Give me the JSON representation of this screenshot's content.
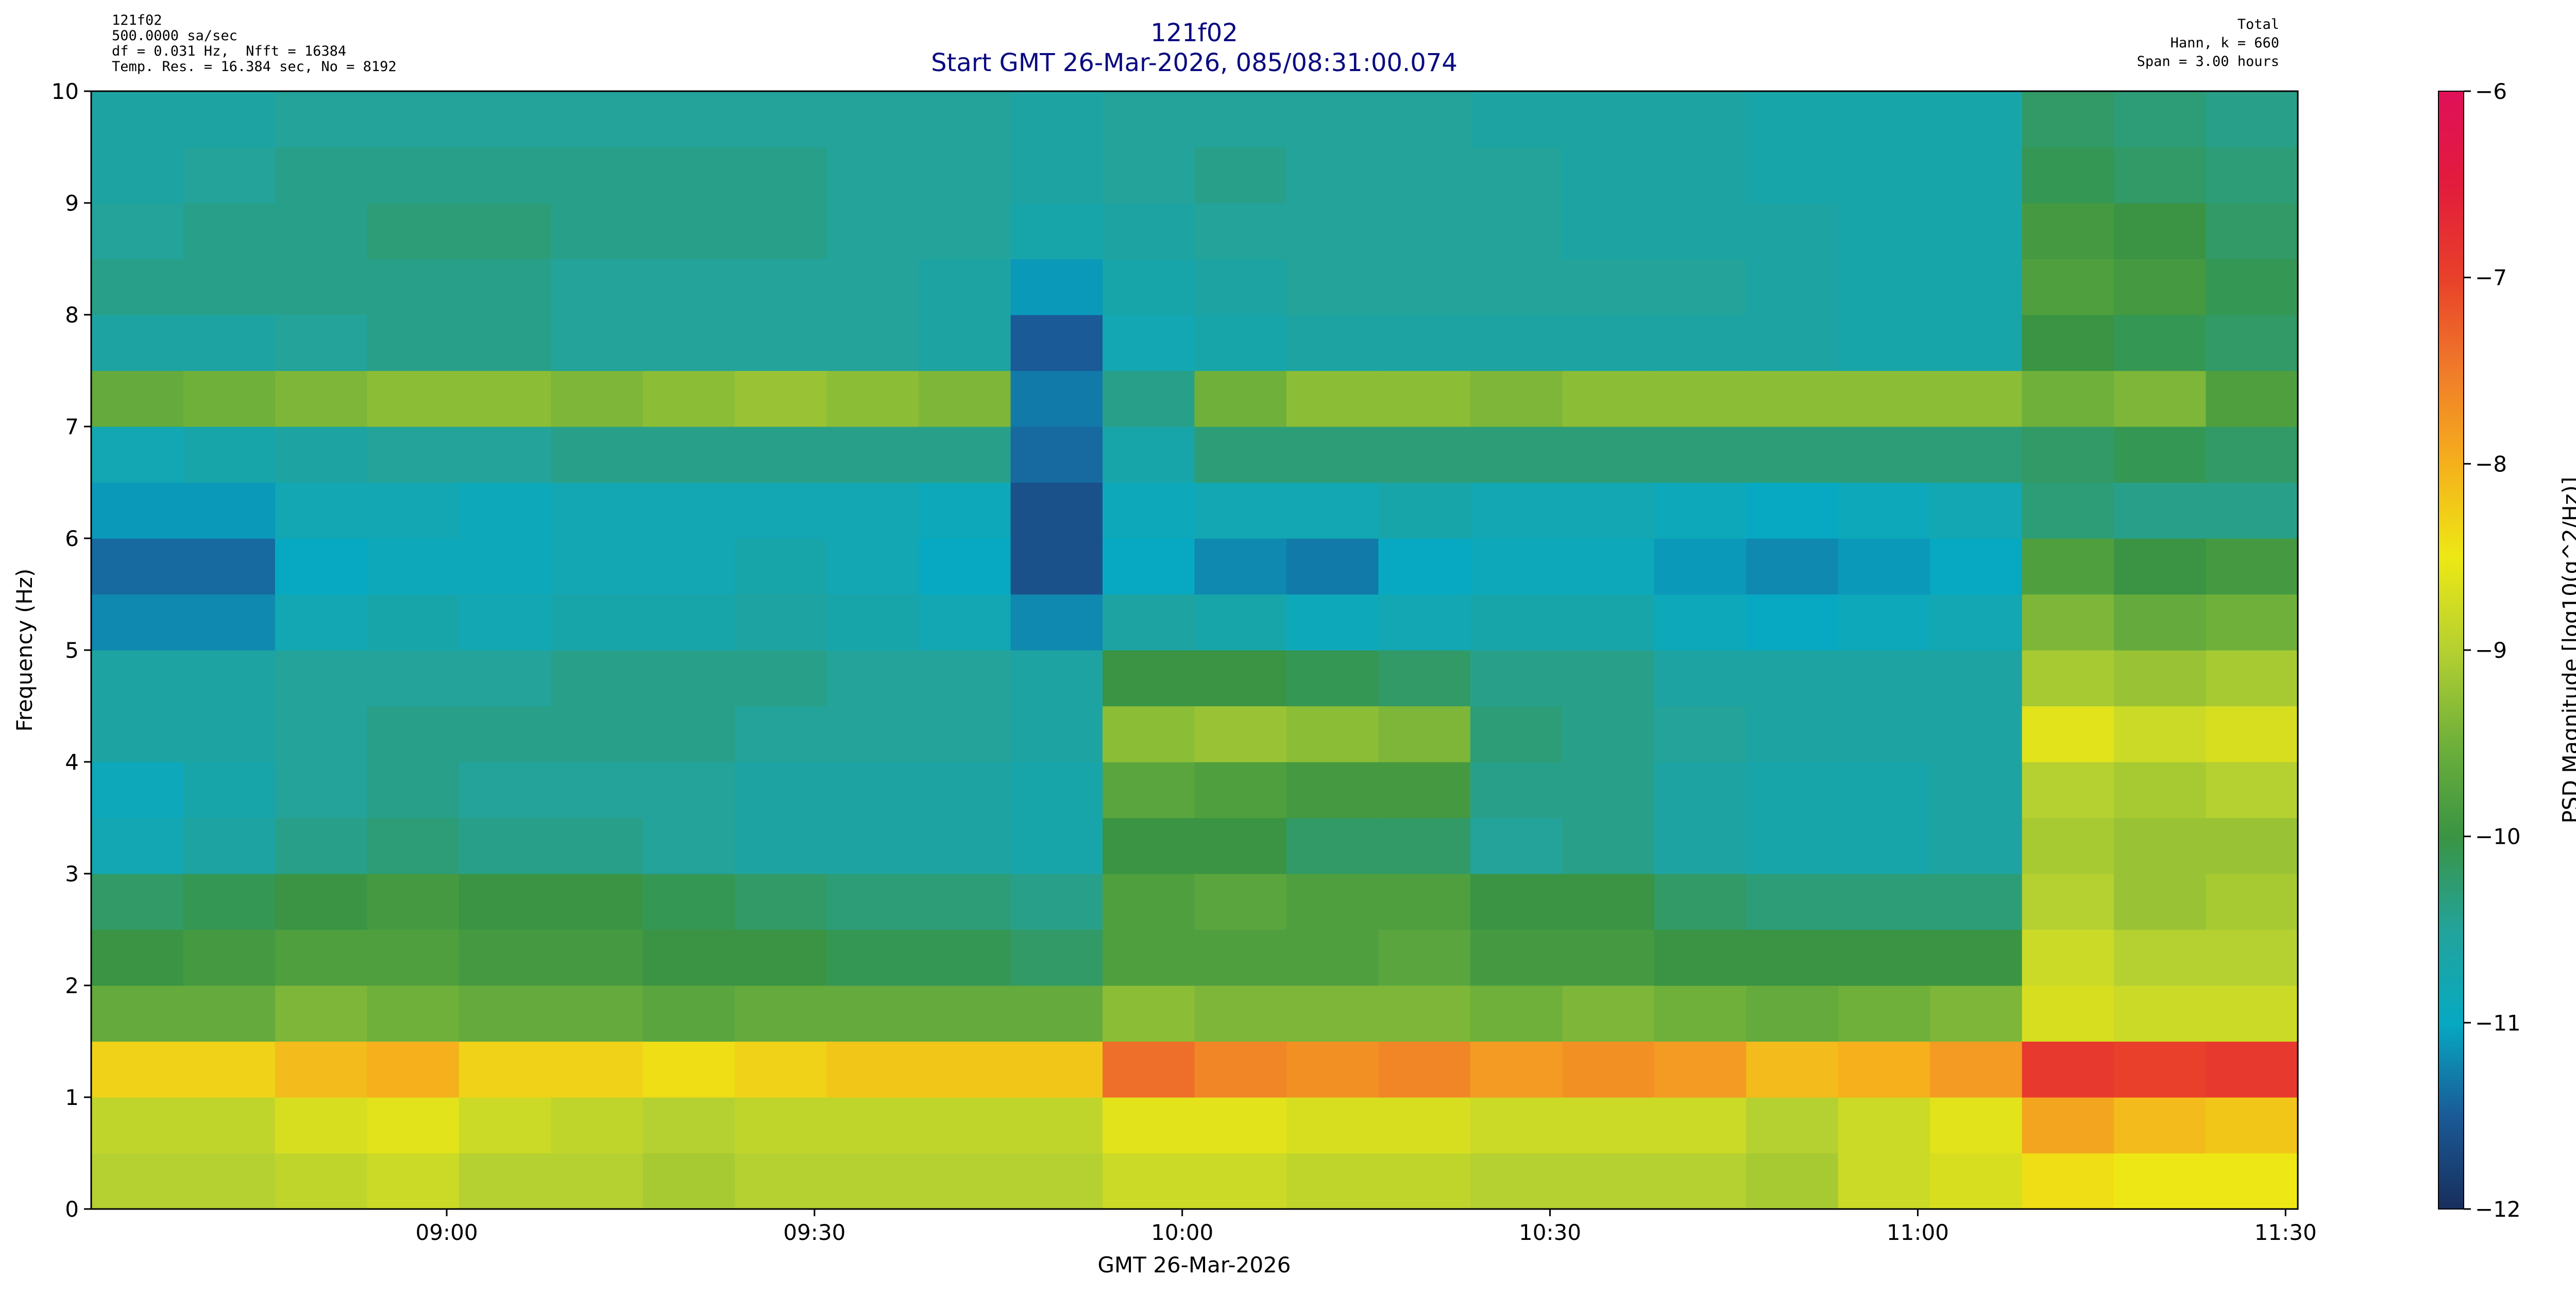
{
  "chart_data": {
    "type": "heatmap",
    "title": "121f02",
    "subtitle": "Start GMT 26-Mar-2026, 085/08:31:00.074",
    "notes_left": [
      "121f02",
      "500.0000 sa/sec",
      "df = 0.031 Hz,  Nfft = 16384",
      "Temp. Res. = 16.384 sec, No = 8192"
    ],
    "notes_right": [
      "Total",
      "Hann, k = 660",
      "Span = 3.00 hours"
    ],
    "xlabel": "GMT 26-Mar-2026",
    "ylabel": "Frequency (Hz)",
    "zlabel": "PSD Magnitude [log10(g^2/Hz)]",
    "xlim": [
      511,
      691
    ],
    "xticks": [
      {
        "value": 540,
        "label": "09:00"
      },
      {
        "value": 570,
        "label": "09:30"
      },
      {
        "value": 600,
        "label": "10:00"
      },
      {
        "value": 630,
        "label": "10:30"
      },
      {
        "value": 660,
        "label": "11:00"
      },
      {
        "value": 690,
        "label": "11:30"
      }
    ],
    "ylim": [
      0,
      10
    ],
    "yticks": [
      0,
      1,
      2,
      3,
      4,
      5,
      6,
      7,
      8,
      9,
      10
    ],
    "zlim": [
      -12,
      -6
    ],
    "zticks": [
      {
        "value": -12,
        "label": "−12"
      },
      {
        "value": -11,
        "label": "−11"
      },
      {
        "value": -10,
        "label": "−10"
      },
      {
        "value": -9,
        "label": "−9"
      },
      {
        "value": -8,
        "label": "−8"
      },
      {
        "value": -7,
        "label": "−7"
      },
      {
        "value": -6,
        "label": "−6"
      }
    ],
    "colors": [
      "#182e5c",
      "#1a5a96",
      "#07a9c2",
      "#23a39a",
      "#3a9443",
      "#6fb03a",
      "#b5d031",
      "#ede815",
      "#f5b01c",
      "#f07b2a",
      "#e8402a",
      "#e21c3c",
      "#e0105a"
    ],
    "bins": [
      511,
      518.5,
      526,
      533.5,
      541,
      548.5,
      556,
      563.5,
      571,
      578.5,
      586,
      593.5,
      601,
      608.5,
      616,
      623.5,
      631,
      638.5,
      646,
      653.5,
      661,
      668.5,
      676,
      683.5,
      691
    ],
    "y_bins": [
      0,
      0.5,
      1,
      1.5,
      2,
      2.5,
      3,
      3.5,
      4,
      4.5,
      5,
      5.5,
      6,
      6.5,
      7,
      7.5,
      8,
      8.5,
      9,
      9.5,
      10
    ],
    "z": [
      [
        -9.0,
        -9.0,
        -8.9,
        -8.8,
        -9.0,
        -9.0,
        -9.1,
        -9.0,
        -9.0,
        -9.0,
        -9.0,
        -8.8,
        -8.8,
        -8.9,
        -8.9,
        -9.0,
        -9.0,
        -9.0,
        -9.1,
        -8.8,
        -8.7,
        -8.4,
        -8.5,
        -8.5
      ],
      [
        -8.9,
        -8.9,
        -8.7,
        -8.6,
        -8.8,
        -8.9,
        -9.0,
        -8.9,
        -8.9,
        -8.9,
        -8.9,
        -8.6,
        -8.6,
        -8.7,
        -8.7,
        -8.8,
        -8.8,
        -8.8,
        -9.0,
        -8.8,
        -8.6,
        -7.9,
        -8.1,
        -8.2
      ],
      [
        -8.3,
        -8.3,
        -8.1,
        -8.0,
        -8.3,
        -8.3,
        -8.4,
        -8.3,
        -8.2,
        -8.2,
        -8.2,
        -7.4,
        -7.6,
        -7.7,
        -7.6,
        -7.8,
        -7.7,
        -7.8,
        -8.1,
        -8.0,
        -7.8,
        -6.9,
        -7.0,
        -6.9
      ],
      [
        -9.6,
        -9.6,
        -9.4,
        -9.5,
        -9.6,
        -9.6,
        -9.7,
        -9.6,
        -9.6,
        -9.6,
        -9.6,
        -9.3,
        -9.4,
        -9.4,
        -9.4,
        -9.5,
        -9.4,
        -9.5,
        -9.6,
        -9.5,
        -9.4,
        -8.7,
        -8.8,
        -8.8
      ],
      [
        -10.0,
        -9.9,
        -9.8,
        -9.8,
        -9.9,
        -9.9,
        -10.0,
        -10.0,
        -10.1,
        -10.1,
        -10.2,
        -9.8,
        -9.8,
        -9.8,
        -9.7,
        -9.9,
        -9.9,
        -10.0,
        -10.0,
        -10.0,
        -10.0,
        -8.8,
        -9.0,
        -9.0
      ],
      [
        -10.2,
        -10.1,
        -10.0,
        -9.9,
        -10.0,
        -10.0,
        -10.1,
        -10.2,
        -10.3,
        -10.3,
        -10.4,
        -9.8,
        -9.7,
        -9.8,
        -9.8,
        -10.0,
        -10.0,
        -10.2,
        -10.3,
        -10.3,
        -10.3,
        -9.0,
        -9.2,
        -9.1
      ],
      [
        -10.8,
        -10.6,
        -10.4,
        -10.3,
        -10.4,
        -10.4,
        -10.5,
        -10.6,
        -10.6,
        -10.6,
        -10.7,
        -10.0,
        -10.0,
        -10.2,
        -10.2,
        -10.5,
        -10.4,
        -10.6,
        -10.7,
        -10.7,
        -10.6,
        -9.1,
        -9.2,
        -9.2
      ],
      [
        -10.9,
        -10.7,
        -10.5,
        -10.4,
        -10.5,
        -10.5,
        -10.5,
        -10.6,
        -10.6,
        -10.6,
        -10.7,
        -9.7,
        -9.8,
        -9.9,
        -9.9,
        -10.4,
        -10.4,
        -10.6,
        -10.7,
        -10.7,
        -10.6,
        -9.0,
        -9.1,
        -9.0
      ],
      [
        -10.6,
        -10.6,
        -10.5,
        -10.4,
        -10.4,
        -10.4,
        -10.4,
        -10.5,
        -10.5,
        -10.5,
        -10.6,
        -9.3,
        -9.2,
        -9.3,
        -9.4,
        -10.3,
        -10.4,
        -10.5,
        -10.6,
        -10.6,
        -10.6,
        -8.6,
        -8.8,
        -8.7
      ],
      [
        -10.6,
        -10.6,
        -10.5,
        -10.5,
        -10.5,
        -10.4,
        -10.4,
        -10.4,
        -10.5,
        -10.5,
        -10.6,
        -10.0,
        -10.0,
        -10.1,
        -10.2,
        -10.4,
        -10.4,
        -10.6,
        -10.6,
        -10.6,
        -10.6,
        -9.1,
        -9.2,
        -9.1
      ],
      [
        -11.2,
        -11.2,
        -10.8,
        -10.7,
        -10.8,
        -10.7,
        -10.7,
        -10.6,
        -10.7,
        -10.8,
        -11.2,
        -10.6,
        -10.7,
        -10.9,
        -10.8,
        -10.7,
        -10.7,
        -10.9,
        -11.0,
        -10.9,
        -10.8,
        -9.4,
        -9.6,
        -9.5
      ],
      [
        -11.4,
        -11.4,
        -11.0,
        -10.9,
        -10.9,
        -10.8,
        -10.8,
        -10.7,
        -10.8,
        -11.0,
        -11.6,
        -11.0,
        -11.2,
        -11.3,
        -11.0,
        -10.9,
        -10.9,
        -11.1,
        -11.2,
        -11.1,
        -11.0,
        -9.8,
        -10.0,
        -9.9
      ],
      [
        -11.1,
        -11.1,
        -10.8,
        -10.8,
        -10.9,
        -10.8,
        -10.8,
        -10.8,
        -10.8,
        -10.9,
        -11.6,
        -10.9,
        -10.8,
        -10.8,
        -10.7,
        -10.8,
        -10.8,
        -10.9,
        -11.0,
        -10.9,
        -10.8,
        -10.3,
        -10.4,
        -10.4
      ],
      [
        -10.8,
        -10.7,
        -10.6,
        -10.5,
        -10.5,
        -10.4,
        -10.4,
        -10.4,
        -10.4,
        -10.4,
        -11.4,
        -10.7,
        -10.3,
        -10.3,
        -10.3,
        -10.3,
        -10.3,
        -10.3,
        -10.3,
        -10.3,
        -10.3,
        -10.2,
        -10.1,
        -10.2
      ],
      [
        -9.6,
        -9.5,
        -9.4,
        -9.3,
        -9.3,
        -9.4,
        -9.3,
        -9.2,
        -9.3,
        -9.4,
        -11.3,
        -10.4,
        -9.5,
        -9.3,
        -9.3,
        -9.4,
        -9.3,
        -9.3,
        -9.3,
        -9.3,
        -9.3,
        -9.5,
        -9.4,
        -9.8
      ],
      [
        -10.6,
        -10.6,
        -10.5,
        -10.4,
        -10.4,
        -10.5,
        -10.5,
        -10.5,
        -10.5,
        -10.6,
        -11.5,
        -10.8,
        -10.7,
        -10.6,
        -10.6,
        -10.6,
        -10.6,
        -10.6,
        -10.6,
        -10.7,
        -10.7,
        -10.0,
        -10.1,
        -10.2
      ],
      [
        -10.4,
        -10.4,
        -10.4,
        -10.4,
        -10.4,
        -10.5,
        -10.5,
        -10.5,
        -10.5,
        -10.6,
        -11.1,
        -10.7,
        -10.6,
        -10.5,
        -10.5,
        -10.5,
        -10.5,
        -10.5,
        -10.6,
        -10.7,
        -10.7,
        -9.8,
        -9.9,
        -10.1
      ],
      [
        -10.5,
        -10.4,
        -10.4,
        -10.3,
        -10.3,
        -10.4,
        -10.4,
        -10.4,
        -10.5,
        -10.5,
        -10.7,
        -10.6,
        -10.5,
        -10.5,
        -10.5,
        -10.5,
        -10.6,
        -10.6,
        -10.6,
        -10.7,
        -10.7,
        -9.9,
        -10.0,
        -10.2
      ],
      [
        -10.6,
        -10.5,
        -10.4,
        -10.4,
        -10.4,
        -10.4,
        -10.4,
        -10.4,
        -10.5,
        -10.5,
        -10.6,
        -10.5,
        -10.4,
        -10.5,
        -10.5,
        -10.5,
        -10.6,
        -10.6,
        -10.7,
        -10.7,
        -10.7,
        -10.1,
        -10.2,
        -10.3
      ],
      [
        -10.6,
        -10.6,
        -10.5,
        -10.5,
        -10.5,
        -10.5,
        -10.5,
        -10.5,
        -10.5,
        -10.5,
        -10.6,
        -10.5,
        -10.5,
        -10.5,
        -10.5,
        -10.6,
        -10.6,
        -10.6,
        -10.7,
        -10.7,
        -10.7,
        -10.2,
        -10.3,
        -10.4
      ]
    ],
    "grid": false
  }
}
